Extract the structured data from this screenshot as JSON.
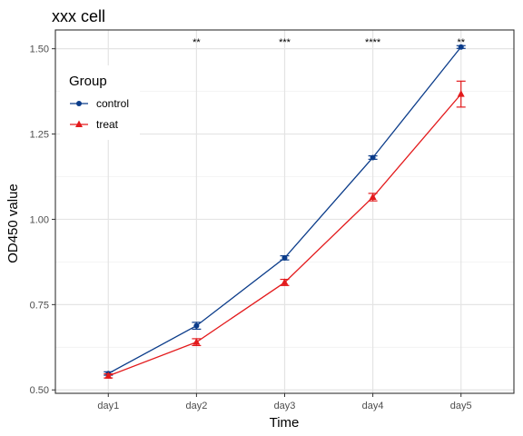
{
  "chart_data": {
    "type": "line",
    "title": "xxx cell",
    "xlabel": "Time",
    "ylabel": "OD450 value",
    "categories": [
      "day1",
      "day2",
      "day3",
      "day4",
      "day5"
    ],
    "ylim": [
      0.49,
      1.555
    ],
    "yticks": [
      0.5,
      0.75,
      1.0,
      1.25,
      1.5
    ],
    "ytick_labels": [
      "0.50",
      "0.75",
      "1.00",
      "1.25",
      "1.50"
    ],
    "grid": true,
    "legend": {
      "title": "Group",
      "position": "top-left"
    },
    "series": [
      {
        "name": "control",
        "color": "#0b3c8a",
        "marker": "circle",
        "values": [
          0.548,
          0.688,
          0.887,
          1.181,
          1.505
        ],
        "errors": [
          0.005,
          0.01,
          0.006,
          0.005,
          0.004
        ]
      },
      {
        "name": "treat",
        "color": "#e31a1c",
        "marker": "triangle",
        "values": [
          0.541,
          0.64,
          0.815,
          1.065,
          1.367
        ],
        "errors": [
          0.006,
          0.01,
          0.009,
          0.011,
          0.038
        ]
      }
    ],
    "annotations": [
      "",
      "**",
      "***",
      "****",
      "**"
    ]
  }
}
